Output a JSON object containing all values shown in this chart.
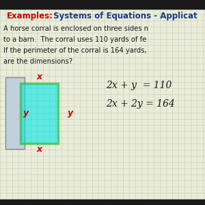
{
  "bg_color": "#eaecda",
  "title_examples": "Examples:",
  "title_rest": " Systems of Equations - Applicat",
  "title_examples_color": "#cc0000",
  "title_rest_color": "#1a3a8a",
  "body_lines": [
    "A horse corral is enclosed on three sides n",
    "to a barn.  The corral uses 110 yards of fe",
    "If the perimeter of the corral is 164 yards,",
    "are the dimensions?"
  ],
  "eq1": "2x + y  = 110",
  "eq2": "2x + 2y = 164",
  "text_color": "#1a1a1a",
  "grid_color": "#c5cab0",
  "barn_fill": "#c0d0dc",
  "barn_edge": "#888888",
  "corral_fill": "#00e8e8",
  "corral_edge": "#22bb22",
  "label_color": "#cc0000",
  "top_bar_color": "#1a1a1a",
  "bottom_bar_color": "#1a1a1a"
}
